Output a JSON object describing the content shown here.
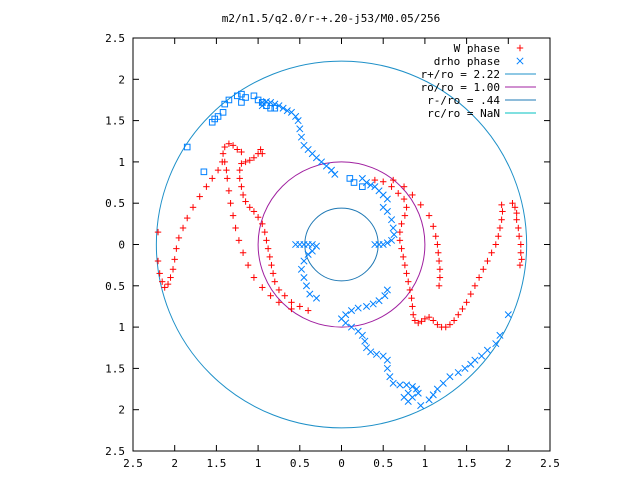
{
  "chart_data": {
    "type": "scatter",
    "title": "m2/n1.5/q2.0/r-+.20-j53/M0.05/256",
    "xlabel": "",
    "ylabel": "",
    "xlim": [
      -2.5,
      2.5
    ],
    "ylim": [
      -2.5,
      2.5
    ],
    "x_ticks": [
      -2.5,
      -2,
      -1.5,
      -1,
      -0.5,
      0,
      0.5,
      1,
      1.5,
      2,
      2.5
    ],
    "x_tick_labels": [
      "2.5",
      "2",
      "1.5",
      "1",
      "0.5",
      "0",
      "0.5",
      "1",
      "1.5",
      "2",
      "2.5"
    ],
    "y_ticks": [
      2.5,
      2,
      1.5,
      1,
      0.5,
      0,
      -0.5,
      -1,
      -1.5,
      -2,
      -2.5
    ],
    "y_tick_labels": [
      "2.5",
      "2",
      "1.5",
      "1",
      "0.5",
      "0",
      "0.5",
      "1",
      "1.5",
      "2",
      "2.5"
    ],
    "grid": false,
    "legend_position": "top-right",
    "legend": [
      {
        "label": "W phase",
        "kind": "marker",
        "marker": "plus",
        "color": "#ff0000"
      },
      {
        "label": "drho phase",
        "kind": "marker",
        "marker": "cross",
        "color": "#0080ff"
      },
      {
        "label": "r+/ro = 2.22",
        "kind": "line",
        "color": "#1e90c8"
      },
      {
        "label": "ro/ro = 1.00",
        "kind": "line",
        "color": "#a020a0"
      },
      {
        "label": "r-/ro = .44",
        "kind": "line",
        "color": "#1e78b4"
      },
      {
        "label": "rc/ro = NaN",
        "kind": "line",
        "color": "#00c0c0"
      }
    ],
    "circles": [
      {
        "name": "r+/ro",
        "radius": 2.22,
        "color": "#1e90c8"
      },
      {
        "name": "ro/ro",
        "radius": 1.0,
        "color": "#a020a0"
      },
      {
        "name": "r-/ro",
        "radius": 0.44,
        "color": "#1e78b4"
      }
    ],
    "series": [
      {
        "name": "W phase",
        "marker": "plus",
        "color": "#ff0000",
        "points": [
          [
            0.4,
            0.78
          ],
          [
            0.5,
            0.76
          ],
          [
            0.6,
            0.7
          ],
          [
            0.68,
            0.62
          ],
          [
            0.75,
            0.55
          ],
          [
            0.78,
            0.45
          ],
          [
            0.76,
            0.35
          ],
          [
            0.72,
            0.25
          ],
          [
            0.7,
            0.15
          ],
          [
            0.7,
            0.05
          ],
          [
            0.72,
            -0.05
          ],
          [
            0.74,
            -0.15
          ],
          [
            0.76,
            -0.25
          ],
          [
            0.78,
            -0.35
          ],
          [
            0.8,
            -0.45
          ],
          [
            0.82,
            -0.55
          ],
          [
            0.84,
            -0.65
          ],
          [
            0.85,
            -0.75
          ],
          [
            0.86,
            -0.85
          ],
          [
            0.88,
            -0.92
          ],
          [
            0.92,
            -0.95
          ],
          [
            0.96,
            -0.93
          ],
          [
            1.0,
            -0.9
          ],
          [
            1.05,
            -0.88
          ],
          [
            1.1,
            -0.92
          ],
          [
            1.15,
            -0.97
          ],
          [
            1.2,
            -1.0
          ],
          [
            1.25,
            -1.0
          ],
          [
            1.3,
            -0.97
          ],
          [
            1.35,
            -0.92
          ],
          [
            1.4,
            -0.85
          ],
          [
            1.45,
            -0.78
          ],
          [
            1.5,
            -0.7
          ],
          [
            1.55,
            -0.6
          ],
          [
            1.6,
            -0.5
          ],
          [
            1.65,
            -0.4
          ],
          [
            1.7,
            -0.3
          ],
          [
            1.75,
            -0.2
          ],
          [
            1.8,
            -0.1
          ],
          [
            1.85,
            0.0
          ],
          [
            1.88,
            0.1
          ],
          [
            1.9,
            0.2
          ],
          [
            1.92,
            0.3
          ],
          [
            1.93,
            0.4
          ],
          [
            1.92,
            0.48
          ],
          [
            0.62,
            0.78
          ],
          [
            0.75,
            0.7
          ],
          [
            0.85,
            0.6
          ],
          [
            0.95,
            0.48
          ],
          [
            1.05,
            0.35
          ],
          [
            1.1,
            0.22
          ],
          [
            1.13,
            0.1
          ],
          [
            1.15,
            0.0
          ],
          [
            1.16,
            -0.1
          ],
          [
            1.17,
            -0.2
          ],
          [
            1.18,
            -0.3
          ],
          [
            1.18,
            -0.4
          ],
          [
            1.17,
            -0.5
          ],
          [
            2.05,
            0.5
          ],
          [
            2.08,
            0.45
          ],
          [
            2.1,
            0.38
          ],
          [
            2.1,
            0.3
          ],
          [
            2.12,
            0.2
          ],
          [
            2.13,
            0.1
          ],
          [
            2.15,
            0.0
          ],
          [
            2.15,
            -0.1
          ],
          [
            2.16,
            -0.18
          ],
          [
            2.14,
            -0.25
          ],
          [
            -0.4,
            -0.8
          ],
          [
            -0.5,
            -0.75
          ],
          [
            -0.6,
            -0.7
          ],
          [
            -0.68,
            -0.62
          ],
          [
            -0.75,
            -0.55
          ],
          [
            -0.8,
            -0.45
          ],
          [
            -0.82,
            -0.35
          ],
          [
            -0.84,
            -0.25
          ],
          [
            -0.86,
            -0.15
          ],
          [
            -0.88,
            -0.05
          ],
          [
            -0.9,
            0.05
          ],
          [
            -0.92,
            0.15
          ],
          [
            -0.95,
            0.25
          ],
          [
            -1.0,
            0.33
          ],
          [
            -1.05,
            0.4
          ],
          [
            -1.1,
            0.45
          ],
          [
            -1.15,
            0.52
          ],
          [
            -1.18,
            0.6
          ],
          [
            -1.2,
            0.7
          ],
          [
            -1.22,
            0.8
          ],
          [
            -1.22,
            0.9
          ],
          [
            -1.2,
            0.98
          ],
          [
            -1.15,
            1.0
          ],
          [
            -1.1,
            1.02
          ],
          [
            -1.05,
            1.05
          ],
          [
            -1.0,
            1.1
          ],
          [
            -0.97,
            1.15
          ],
          [
            -0.95,
            1.1
          ],
          [
            -0.6,
            -0.78
          ],
          [
            -0.75,
            -0.7
          ],
          [
            -0.85,
            -0.62
          ],
          [
            -0.95,
            -0.52
          ],
          [
            -1.05,
            -0.4
          ],
          [
            -1.12,
            -0.25
          ],
          [
            -1.18,
            -0.1
          ],
          [
            -1.23,
            0.05
          ],
          [
            -1.27,
            0.2
          ],
          [
            -1.3,
            0.35
          ],
          [
            -1.33,
            0.5
          ],
          [
            -1.35,
            0.65
          ],
          [
            -1.37,
            0.8
          ],
          [
            -1.38,
            0.9
          ],
          [
            -1.4,
            1.0
          ],
          [
            -1.42,
            1.1
          ],
          [
            -1.4,
            1.18
          ],
          [
            -1.35,
            1.22
          ],
          [
            -1.3,
            1.2
          ],
          [
            -1.25,
            1.15
          ],
          [
            -1.2,
            1.12
          ],
          [
            -1.43,
            1.0
          ],
          [
            -1.48,
            0.9
          ],
          [
            -1.55,
            0.8
          ],
          [
            -1.62,
            0.7
          ],
          [
            -1.7,
            0.58
          ],
          [
            -1.78,
            0.45
          ],
          [
            -1.85,
            0.32
          ],
          [
            -1.9,
            0.2
          ],
          [
            -1.95,
            0.08
          ],
          [
            -1.98,
            -0.05
          ],
          [
            -2.0,
            -0.18
          ],
          [
            -2.02,
            -0.3
          ],
          [
            -2.05,
            -0.4
          ],
          [
            -2.08,
            -0.48
          ],
          [
            -2.12,
            -0.52
          ],
          [
            -2.15,
            -0.45
          ],
          [
            -2.18,
            -0.35
          ],
          [
            -2.2,
            -0.2
          ],
          [
            -2.2,
            0.15
          ]
        ]
      },
      {
        "name": "drho phase",
        "marker": "cross",
        "color": "#0080ff",
        "points": [
          [
            0.55,
            -0.55
          ],
          [
            0.52,
            -0.62
          ],
          [
            0.45,
            -0.68
          ],
          [
            0.38,
            -0.72
          ],
          [
            0.3,
            -0.75
          ],
          [
            0.2,
            -0.77
          ],
          [
            0.12,
            -0.8
          ],
          [
            0.05,
            -0.85
          ],
          [
            0.0,
            -0.9
          ],
          [
            0.05,
            -0.95
          ],
          [
            0.12,
            -1.0
          ],
          [
            0.2,
            -1.05
          ],
          [
            0.25,
            -1.1
          ],
          [
            0.28,
            -1.17
          ],
          [
            0.3,
            -1.25
          ],
          [
            0.35,
            -1.3
          ],
          [
            0.42,
            -1.33
          ],
          [
            0.5,
            -1.35
          ],
          [
            0.55,
            -1.4
          ],
          [
            0.55,
            -1.5
          ],
          [
            0.58,
            -1.6
          ],
          [
            0.62,
            -1.68
          ],
          [
            0.7,
            -1.7
          ],
          [
            0.78,
            -1.7
          ],
          [
            0.85,
            -1.72
          ],
          [
            0.9,
            -1.75
          ],
          [
            0.92,
            -1.8
          ],
          [
            0.85,
            -1.85
          ],
          [
            0.8,
            -1.8
          ],
          [
            0.75,
            -1.85
          ],
          [
            0.8,
            -1.9
          ],
          [
            0.95,
            -1.95
          ],
          [
            1.05,
            -1.88
          ],
          [
            1.1,
            -1.82
          ],
          [
            1.15,
            -1.75
          ],
          [
            1.22,
            -1.68
          ],
          [
            1.3,
            -1.6
          ],
          [
            1.4,
            -1.55
          ],
          [
            1.48,
            -1.5
          ],
          [
            1.55,
            -1.45
          ],
          [
            1.6,
            -1.4
          ],
          [
            1.68,
            -1.35
          ],
          [
            1.75,
            -1.28
          ],
          [
            1.85,
            -1.2
          ],
          [
            1.9,
            -1.1
          ],
          [
            2.0,
            -0.85
          ],
          [
            0.25,
            0.8
          ],
          [
            0.3,
            0.75
          ],
          [
            0.35,
            0.72
          ],
          [
            0.4,
            0.7
          ],
          [
            0.45,
            0.65
          ],
          [
            0.5,
            0.6
          ],
          [
            0.55,
            0.55
          ],
          [
            0.5,
            0.45
          ],
          [
            0.55,
            0.4
          ],
          [
            0.6,
            0.3
          ],
          [
            0.62,
            0.2
          ],
          [
            0.63,
            0.12
          ],
          [
            0.6,
            0.05
          ],
          [
            0.55,
            0.02
          ],
          [
            0.5,
            0.0
          ],
          [
            0.45,
            0.0
          ],
          [
            0.4,
            0.0
          ],
          [
            -0.55,
            0.0
          ],
          [
            -0.5,
            0.0
          ],
          [
            -0.45,
            0.0
          ],
          [
            -0.4,
            0.0
          ],
          [
            -0.35,
            0.0
          ],
          [
            -0.3,
            -0.02
          ],
          [
            -0.35,
            -0.08
          ],
          [
            -0.4,
            -0.12
          ],
          [
            -0.45,
            -0.2
          ],
          [
            -0.48,
            -0.3
          ],
          [
            -0.45,
            -0.4
          ],
          [
            -0.42,
            -0.5
          ],
          [
            -0.38,
            -0.6
          ],
          [
            -0.3,
            -0.65
          ],
          [
            -0.08,
            0.85
          ],
          [
            -0.12,
            0.9
          ],
          [
            -0.18,
            0.95
          ],
          [
            -0.24,
            1.0
          ],
          [
            -0.3,
            1.05
          ],
          [
            -0.35,
            1.1
          ],
          [
            -0.4,
            1.15
          ],
          [
            -0.45,
            1.2
          ],
          [
            -0.48,
            1.3
          ],
          [
            -0.5,
            1.4
          ],
          [
            -0.52,
            1.5
          ],
          [
            -0.55,
            1.55
          ],
          [
            -0.6,
            1.6
          ],
          [
            -0.65,
            1.62
          ],
          [
            -0.7,
            1.65
          ],
          [
            -0.75,
            1.68
          ],
          [
            -0.8,
            1.7
          ],
          [
            -0.85,
            1.72
          ],
          [
            -0.9,
            1.73
          ],
          [
            -0.95,
            1.68
          ],
          [
            -0.95,
            1.72
          ]
        ]
      },
      {
        "name": "drho phase (squares)",
        "marker": "square",
        "color": "#0080ff",
        "points": [
          [
            -1.85,
            1.18
          ],
          [
            -1.65,
            0.88
          ],
          [
            -1.55,
            1.48
          ],
          [
            -1.52,
            1.52
          ],
          [
            -1.48,
            1.55
          ],
          [
            -1.42,
            1.6
          ],
          [
            -1.4,
            1.7
          ],
          [
            -1.35,
            1.75
          ],
          [
            -1.25,
            1.8
          ],
          [
            -1.2,
            1.82
          ],
          [
            -1.15,
            1.78
          ],
          [
            -1.05,
            1.8
          ],
          [
            -1.0,
            1.75
          ],
          [
            -0.95,
            1.72
          ],
          [
            -0.9,
            1.68
          ],
          [
            -0.85,
            1.65
          ],
          [
            -0.8,
            1.65
          ],
          [
            -1.2,
            1.72
          ],
          [
            0.1,
            0.8
          ],
          [
            0.15,
            0.75
          ],
          [
            0.25,
            0.7
          ]
        ]
      }
    ]
  }
}
